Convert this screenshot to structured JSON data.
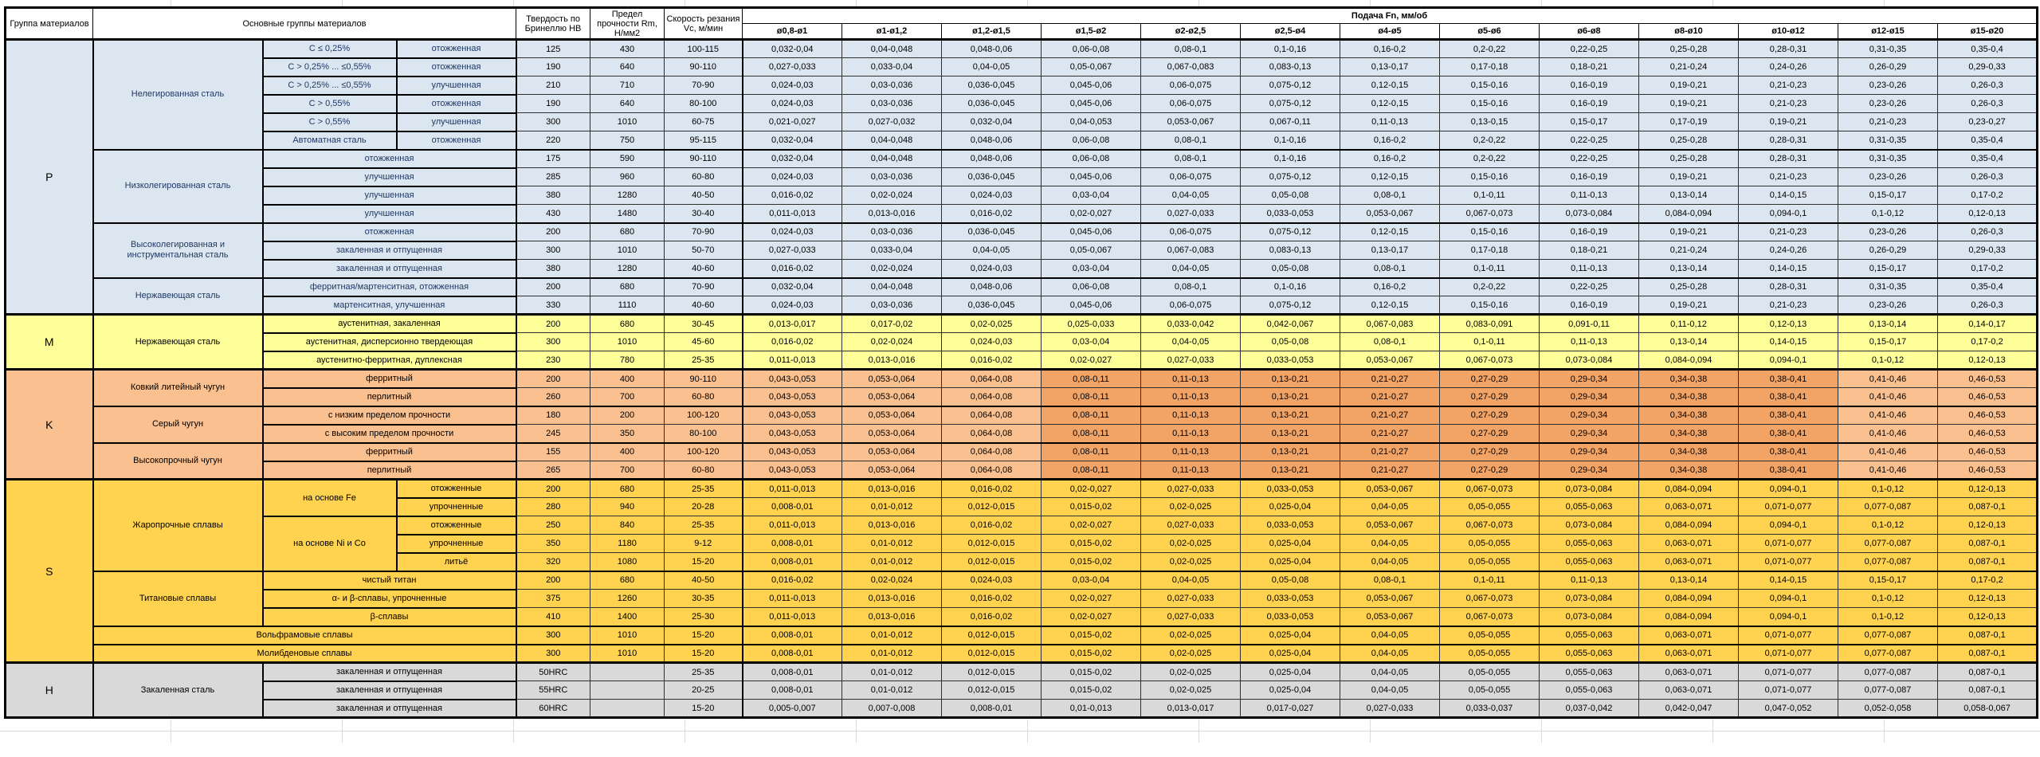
{
  "header": {
    "col_group": "Группа материалов",
    "col_main_groups": "Основные группы материалов",
    "col_hardness": "Твердость по Бринеллю HB",
    "col_strength": "Предел прочности Rm, Н/мм2",
    "col_speed": "Скорость резания Vc, м/мин",
    "col_feed": "Подача Fn, мм/об",
    "diameters": [
      "ø0,8-ø1",
      "ø1-ø1,2",
      "ø1,2-ø1,5",
      "ø1,5-ø2",
      "ø2-ø2,5",
      "ø2,5-ø4",
      "ø4-ø5",
      "ø5-ø6",
      "ø6-ø8",
      "ø8-ø10",
      "ø10-ø12",
      "ø12-ø15",
      "ø15-ø20"
    ]
  },
  "colors": {
    "p": "#dce6f1",
    "m": "#ffff99",
    "k": "#fac08f",
    "k_highlight": "#f2a366",
    "s": "#ffd24f",
    "h": "#d9d9d9",
    "p_label_text": "#1f3864",
    "header_bg": "#ffffff"
  },
  "feed_patterns": {
    "A": [
      "0,032-0,04",
      "0,04-0,048",
      "0,048-0,06",
      "0,06-0,08",
      "0,08-0,1",
      "0,1-0,16",
      "0,16-0,2",
      "0,2-0,22",
      "0,22-0,25",
      "0,25-0,28",
      "0,28-0,31",
      "0,31-0,35",
      "0,35-0,4"
    ],
    "B": [
      "0,027-0,033",
      "0,033-0,04",
      "0,04-0,05",
      "0,05-0,067",
      "0,067-0,083",
      "0,083-0,13",
      "0,13-0,17",
      "0,17-0,18",
      "0,18-0,21",
      "0,21-0,24",
      "0,24-0,26",
      "0,26-0,29",
      "0,29-0,33"
    ],
    "C": [
      "0,024-0,03",
      "0,03-0,036",
      "0,036-0,045",
      "0,045-0,06",
      "0,06-0,075",
      "0,075-0,12",
      "0,12-0,15",
      "0,15-0,16",
      "0,16-0,19",
      "0,19-0,21",
      "0,21-0,23",
      "0,23-0,26",
      "0,26-0,3"
    ],
    "D": [
      "0,021-0,027",
      "0,027-0,032",
      "0,032-0,04",
      "0,04-0,053",
      "0,053-0,067",
      "0,067-0,11",
      "0,11-0,13",
      "0,13-0,15",
      "0,15-0,17",
      "0,17-0,19",
      "0,19-0,21",
      "0,21-0,23",
      "0,23-0,27"
    ],
    "E": [
      "0,016-0,02",
      "0,02-0,024",
      "0,024-0,03",
      "0,03-0,04",
      "0,04-0,05",
      "0,05-0,08",
      "0,08-0,1",
      "0,1-0,11",
      "0,11-0,13",
      "0,13-0,14",
      "0,14-0,15",
      "0,15-0,17",
      "0,17-0,2"
    ],
    "F": [
      "0,011-0,013",
      "0,013-0,016",
      "0,016-0,02",
      "0,02-0,027",
      "0,027-0,033",
      "0,033-0,053",
      "0,053-0,067",
      "0,067-0,073",
      "0,073-0,084",
      "0,084-0,094",
      "0,094-0,1",
      "0,1-0,12",
      "0,12-0,13"
    ],
    "G": [
      "0,013-0,017",
      "0,017-0,02",
      "0,02-0,025",
      "0,025-0,033",
      "0,033-0,042",
      "0,042-0,067",
      "0,067-0,083",
      "0,083-0,091",
      "0,091-0,11",
      "0,11-0,12",
      "0,12-0,13",
      "0,13-0,14",
      "0,14-0,17"
    ],
    "K": [
      "0,043-0,053",
      "0,053-0,064",
      "0,064-0,08",
      "0,08-0,11",
      "0,11-0,13",
      "0,13-0,21",
      "0,21-0,27",
      "0,27-0,29",
      "0,29-0,34",
      "0,34-0,38",
      "0,38-0,41",
      "0,41-0,46",
      "0,46-0,53"
    ],
    "H8": [
      "0,008-0,01",
      "0,01-0,012",
      "0,012-0,015",
      "0,015-0,02",
      "0,02-0,025",
      "0,025-0,04",
      "0,04-0,05",
      "0,05-0,055",
      "0,055-0,063",
      "0,063-0,071",
      "0,071-0,077",
      "0,077-0,087",
      "0,087-0,1"
    ],
    "H5": [
      "0,005-0,007",
      "0,007-0,008",
      "0,008-0,01",
      "0,01-0,013",
      "0,013-0,017",
      "0,017-0,027",
      "0,027-0,033",
      "0,033-0,037",
      "0,037-0,042",
      "0,042-0,047",
      "0,047-0,052",
      "0,052-0,058",
      "0,058-0,067"
    ]
  },
  "sections": [
    {
      "letter": "P",
      "color_key": "p",
      "label_text_color": "#1f3864",
      "groups": [
        {
          "name": "Нелегированная сталь",
          "rows": [
            {
              "st": "C ≤ 0,25%",
              "cond": "отожженная",
              "hb": "125",
              "rm": "430",
              "vc": "100-115",
              "f": "A"
            },
            {
              "st": "C > 0,25% ... ≤0,55%",
              "cond": "отожженная",
              "hb": "190",
              "rm": "640",
              "vc": "90-110",
              "f": "B"
            },
            {
              "st": "C > 0,25% ... ≤0,55%",
              "cond": "улучшенная",
              "hb": "210",
              "rm": "710",
              "vc": "70-90",
              "f": "C"
            },
            {
              "st": "C > 0,55%",
              "cond": "отожженная",
              "hb": "190",
              "rm": "640",
              "vc": "80-100",
              "f": "C"
            },
            {
              "st": "C > 0,55%",
              "cond": "улучшенная",
              "hb": "300",
              "rm": "1010",
              "vc": "60-75",
              "f": "D"
            },
            {
              "st": "Автоматная сталь",
              "cond": "отожженная",
              "hb": "220",
              "rm": "750",
              "vc": "95-115",
              "f": "A"
            }
          ]
        },
        {
          "name": "Низколегированная сталь",
          "rows": [
            {
              "label": "отожженная",
              "hb": "175",
              "rm": "590",
              "vc": "90-110",
              "f": "A"
            },
            {
              "label": "улучшенная",
              "hb": "285",
              "rm": "960",
              "vc": "60-80",
              "f": "C"
            },
            {
              "label": "улучшенная",
              "hb": "380",
              "rm": "1280",
              "vc": "40-50",
              "f": "E"
            },
            {
              "label": "улучшенная",
              "hb": "430",
              "rm": "1480",
              "vc": "30-40",
              "f": "F"
            }
          ]
        },
        {
          "name": "Высоколегированная и инструментальная сталь",
          "rows": [
            {
              "label": "отожженная",
              "hb": "200",
              "rm": "680",
              "vc": "70-90",
              "f": "C"
            },
            {
              "label": "закаленная и отпущенная",
              "hb": "300",
              "rm": "1010",
              "vc": "50-70",
              "f": "B"
            },
            {
              "label": "закаленная и отпущенная",
              "hb": "380",
              "rm": "1280",
              "vc": "40-60",
              "f": "E"
            }
          ]
        },
        {
          "name": "Нержавеющая сталь",
          "rows": [
            {
              "label": "ферритная/мартенситная, отожженная",
              "hb": "200",
              "rm": "680",
              "vc": "70-90",
              "f": "A"
            },
            {
              "label": "мартенситная, улучшенная",
              "hb": "330",
              "rm": "1110",
              "vc": "40-60",
              "f": "C"
            }
          ]
        }
      ]
    },
    {
      "letter": "M",
      "color_key": "m",
      "groups": [
        {
          "name": "Нержавеющая сталь",
          "rows": [
            {
              "label": "аустенитная, закаленная",
              "hb": "200",
              "rm": "680",
              "vc": "30-45",
              "f": "G"
            },
            {
              "label": "аустенитная, дисперсионно твердеющая",
              "hb": "300",
              "rm": "1010",
              "vc": "45-60",
              "f": "E"
            },
            {
              "label": "аустенитно-ферритная, дуплексная",
              "hb": "230",
              "rm": "780",
              "vc": "25-35",
              "f": "F"
            }
          ]
        }
      ]
    },
    {
      "letter": "K",
      "color_key": "k",
      "highlight_cols": [
        3,
        10
      ],
      "groups": [
        {
          "name": "Ковкий литейный чугун",
          "rows": [
            {
              "label": "ферритный",
              "hb": "200",
              "rm": "400",
              "vc": "90-110",
              "f": "K"
            },
            {
              "label": "перлитный",
              "hb": "260",
              "rm": "700",
              "vc": "60-80",
              "f": "K"
            }
          ]
        },
        {
          "name": "Серый чугун",
          "rows": [
            {
              "label": "с низким пределом прочности",
              "hb": "180",
              "rm": "200",
              "vc": "100-120",
              "f": "K"
            },
            {
              "label": "с высоким пределом прочности",
              "hb": "245",
              "rm": "350",
              "vc": "80-100",
              "f": "K"
            }
          ]
        },
        {
          "name": "Высокопрочный чугун",
          "rows": [
            {
              "label": "ферритный",
              "hb": "155",
              "rm": "400",
              "vc": "100-120",
              "f": "K"
            },
            {
              "label": "перлитный",
              "hb": "265",
              "rm": "700",
              "vc": "60-80",
              "f": "K"
            }
          ]
        }
      ]
    },
    {
      "letter": "S",
      "color_key": "s",
      "groups": [
        {
          "name": "Жаропрочные сплавы",
          "rows": [
            {
              "st": "на основе Fe",
              "st_span": 2,
              "cond": "отожженные",
              "hb": "200",
              "rm": "680",
              "vc": "25-35",
              "f": "F"
            },
            {
              "cond": "упрочненные",
              "hb": "280",
              "rm": "940",
              "vc": "20-28",
              "f": "H8"
            },
            {
              "st": "на основе Ni и Co",
              "st_span": 3,
              "cond": "отожженные",
              "hb": "250",
              "rm": "840",
              "vc": "25-35",
              "f": "F"
            },
            {
              "cond": "упрочненные",
              "hb": "350",
              "rm": "1180",
              "vc": "9-12",
              "f": "H8"
            },
            {
              "cond": "литьё",
              "hb": "320",
              "rm": "1080",
              "vc": "15-20",
              "f": "H8"
            }
          ]
        },
        {
          "name": "Титановые сплавы",
          "rows": [
            {
              "label": "чистый титан",
              "hb": "200",
              "rm": "680",
              "vc": "40-50",
              "f": "E"
            },
            {
              "label": "α- и β-сплавы, упрочненные",
              "hb": "375",
              "rm": "1260",
              "vc": "30-35",
              "f": "F"
            },
            {
              "label": "β-сплавы",
              "hb": "410",
              "rm": "1400",
              "vc": "25-30",
              "f": "F"
            }
          ]
        },
        {
          "name": "Вольфрамовые сплавы",
          "full": true,
          "rows": [
            {
              "hb": "300",
              "rm": "1010",
              "vc": "15-20",
              "f": "H8"
            }
          ]
        },
        {
          "name": "Молибденовые сплавы",
          "full": true,
          "rows": [
            {
              "hb": "300",
              "rm": "1010",
              "vc": "15-20",
              "f": "H8"
            }
          ]
        }
      ]
    },
    {
      "letter": "H",
      "color_key": "h",
      "groups": [
        {
          "name": "Закаленная сталь",
          "rows": [
            {
              "label": "закаленная и отпущенная",
              "hb": "50HRC",
              "rm": "",
              "vc": "25-35",
              "f": "H8"
            },
            {
              "label": "закаленная и отпущенная",
              "hb": "55HRC",
              "rm": "",
              "vc": "20-25",
              "f": "H8"
            },
            {
              "label": "закаленная и отпущенная",
              "hb": "60HRC",
              "rm": "",
              "vc": "15-20",
              "f": "H5"
            }
          ]
        }
      ]
    }
  ]
}
